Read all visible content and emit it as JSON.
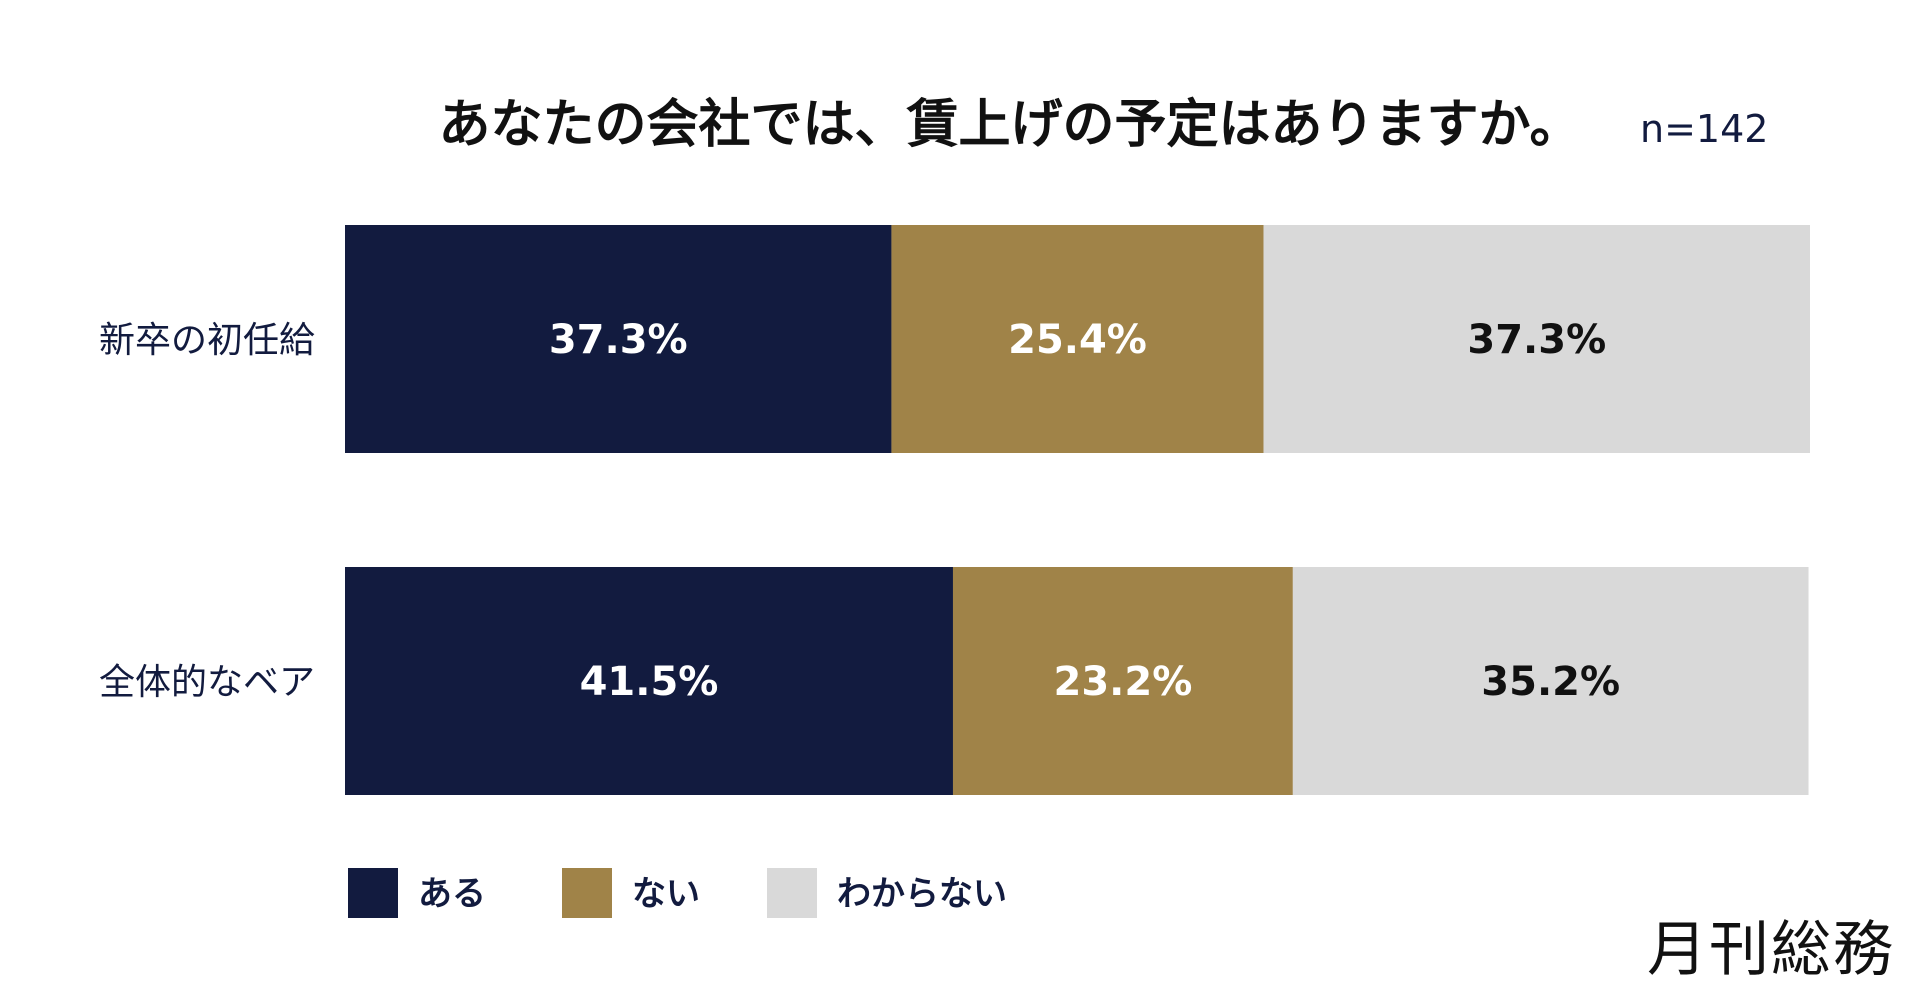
{
  "chart_data": {
    "type": "bar",
    "orientation": "horizontal",
    "stacked": true,
    "percent": true,
    "title": "あなたの会社では、賃上げの予定はありますか。",
    "sample_size": "n=142",
    "categories": [
      "新卒の初任給",
      "全体的なベア"
    ],
    "series": [
      {
        "name": "ある",
        "values": [
          37.3,
          41.5
        ],
        "color": "#121b3f",
        "label_color": "#ffffff"
      },
      {
        "name": "ない",
        "values": [
          25.4,
          23.2
        ],
        "color": "#a08348",
        "label_color": "#ffffff"
      },
      {
        "name": "わからない",
        "values": [
          37.3,
          35.2
        ],
        "color": "#d9d9d9",
        "label_color": "#111111"
      }
    ],
    "value_suffix": "%",
    "xlim": [
      0,
      100
    ],
    "grid": false,
    "legend_position": "bottom-left"
  },
  "logo": {
    "text": "月刊総務"
  }
}
